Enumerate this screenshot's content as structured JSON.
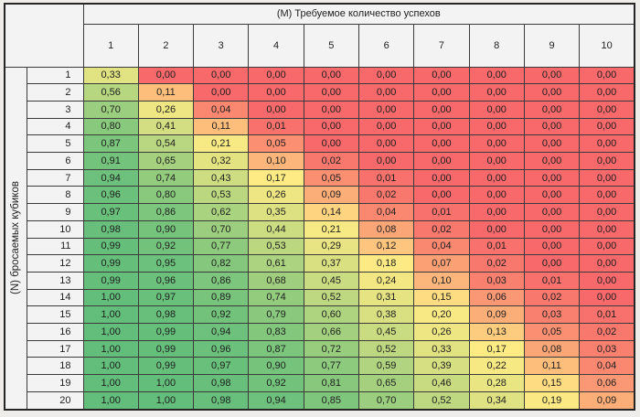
{
  "chart_data": {
    "type": "heatmap",
    "title": "(М) Требуемое количество успехов",
    "row_axis_label": "(N) бросаемых кубиков",
    "columns": [
      1,
      2,
      3,
      4,
      5,
      6,
      7,
      8,
      9,
      10
    ],
    "rows": [
      1,
      2,
      3,
      4,
      5,
      6,
      7,
      8,
      9,
      10,
      11,
      12,
      13,
      14,
      15,
      16,
      17,
      18,
      19,
      20
    ],
    "matrix": [
      [
        0.33,
        0.0,
        0.0,
        0.0,
        0.0,
        0.0,
        0.0,
        0.0,
        0.0,
        0.0
      ],
      [
        0.56,
        0.11,
        0.0,
        0.0,
        0.0,
        0.0,
        0.0,
        0.0,
        0.0,
        0.0
      ],
      [
        0.7,
        0.26,
        0.04,
        0.0,
        0.0,
        0.0,
        0.0,
        0.0,
        0.0,
        0.0
      ],
      [
        0.8,
        0.41,
        0.11,
        0.01,
        0.0,
        0.0,
        0.0,
        0.0,
        0.0,
        0.0
      ],
      [
        0.87,
        0.54,
        0.21,
        0.05,
        0.0,
        0.0,
        0.0,
        0.0,
        0.0,
        0.0
      ],
      [
        0.91,
        0.65,
        0.32,
        0.1,
        0.02,
        0.0,
        0.0,
        0.0,
        0.0,
        0.0
      ],
      [
        0.94,
        0.74,
        0.43,
        0.17,
        0.05,
        0.01,
        0.0,
        0.0,
        0.0,
        0.0
      ],
      [
        0.96,
        0.8,
        0.53,
        0.26,
        0.09,
        0.02,
        0.0,
        0.0,
        0.0,
        0.0
      ],
      [
        0.97,
        0.86,
        0.62,
        0.35,
        0.14,
        0.04,
        0.01,
        0.0,
        0.0,
        0.0
      ],
      [
        0.98,
        0.9,
        0.7,
        0.44,
        0.21,
        0.08,
        0.02,
        0.0,
        0.0,
        0.0
      ],
      [
        0.99,
        0.92,
        0.77,
        0.53,
        0.29,
        0.12,
        0.04,
        0.01,
        0.0,
        0.0
      ],
      [
        0.99,
        0.95,
        0.82,
        0.61,
        0.37,
        0.18,
        0.07,
        0.02,
        0.0,
        0.0
      ],
      [
        0.99,
        0.96,
        0.86,
        0.68,
        0.45,
        0.24,
        0.1,
        0.03,
        0.01,
        0.0
      ],
      [
        1.0,
        0.97,
        0.89,
        0.74,
        0.52,
        0.31,
        0.15,
        0.06,
        0.02,
        0.0
      ],
      [
        1.0,
        0.98,
        0.92,
        0.79,
        0.6,
        0.38,
        0.2,
        0.09,
        0.03,
        0.01
      ],
      [
        1.0,
        0.99,
        0.94,
        0.83,
        0.66,
        0.45,
        0.26,
        0.13,
        0.05,
        0.02
      ],
      [
        1.0,
        0.99,
        0.96,
        0.87,
        0.72,
        0.52,
        0.33,
        0.17,
        0.08,
        0.03
      ],
      [
        1.0,
        0.99,
        0.97,
        0.9,
        0.77,
        0.59,
        0.39,
        0.22,
        0.11,
        0.04
      ],
      [
        1.0,
        1.0,
        0.98,
        0.92,
        0.81,
        0.65,
        0.46,
        0.28,
        0.15,
        0.06
      ],
      [
        1.0,
        1.0,
        0.98,
        0.94,
        0.85,
        0.7,
        0.52,
        0.34,
        0.19,
        0.09
      ]
    ],
    "number_format": {
      "decimals": 2,
      "decimal_separator": ","
    },
    "color_scale": {
      "min_value": 0,
      "mid_value": 0.17,
      "max_value": 1,
      "min_color": "#F8696B",
      "mid_color": "#FFEB84",
      "max_color": "#63BE7B"
    },
    "legend": "none",
    "grid": "on"
  },
  "style": {
    "canvas_bg": "#EFEDEA",
    "header_bg": "#F3F3F3",
    "border_color": "#3B3B3B",
    "outer_border_color": "#262626",
    "text_color": "#1E1E1E"
  }
}
